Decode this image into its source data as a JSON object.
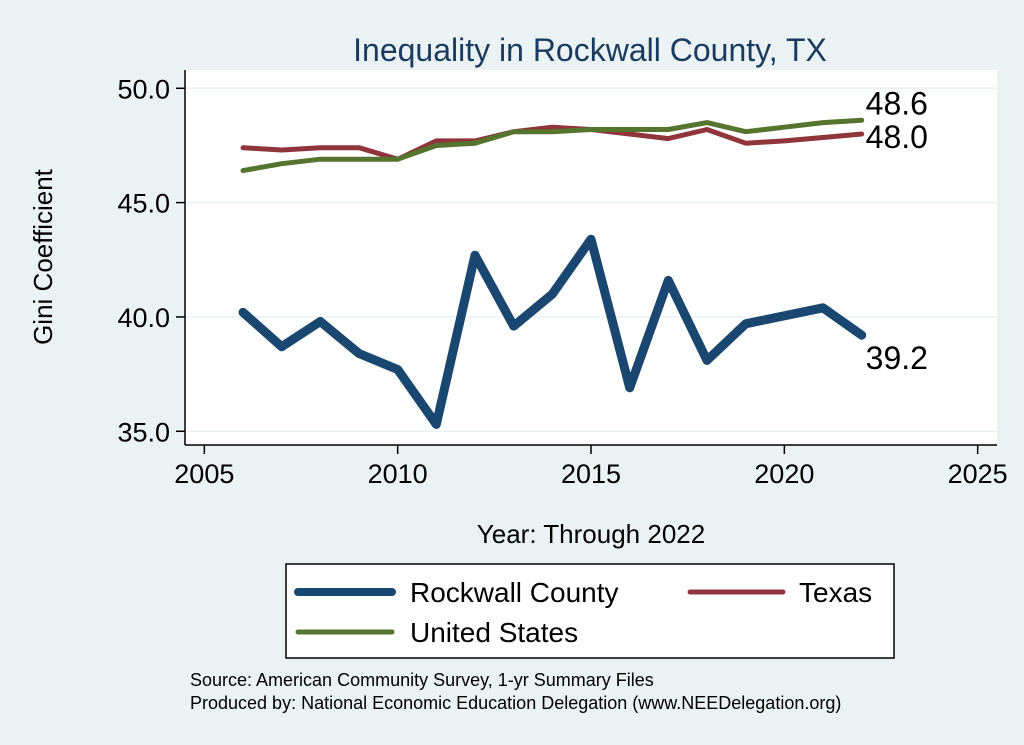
{
  "chart_data": {
    "type": "line",
    "title": "Inequality in Rockwall County, TX",
    "xlabel": "Year: Through 2022",
    "ylabel": "Gini Coefficient",
    "xlim": [
      2004.5,
      2025.5
    ],
    "ylim": [
      34.4,
      50.8
    ],
    "xticks": [
      2005,
      2010,
      2015,
      2020,
      2025
    ],
    "xtick_labels": [
      "2005",
      "2010",
      "2015",
      "2020",
      "2025"
    ],
    "yticks": [
      35,
      40,
      45,
      50
    ],
    "ytick_labels": [
      "35.0",
      "40.0",
      "45.0",
      "50.0"
    ],
    "grid": true,
    "x": [
      2006,
      2007,
      2008,
      2009,
      2010,
      2011,
      2012,
      2013,
      2014,
      2015,
      2016,
      2017,
      2018,
      2019,
      2020,
      2021,
      2022
    ],
    "series": [
      {
        "key": "rockwall",
        "name": "Rockwall County",
        "color": "#1a476f",
        "values": [
          40.2,
          38.7,
          39.8,
          38.4,
          37.7,
          35.3,
          42.7,
          39.6,
          41.0,
          43.4,
          36.9,
          41.6,
          38.1,
          39.7,
          40.05,
          40.4,
          39.2
        ],
        "end_label": "39.2"
      },
      {
        "key": "texas",
        "name": "Texas",
        "color": "#90353b",
        "values": [
          47.4,
          47.3,
          47.4,
          47.4,
          46.9,
          47.7,
          47.7,
          48.1,
          48.3,
          48.2,
          48.0,
          47.8,
          48.2,
          47.6,
          47.7,
          47.85,
          48.0
        ],
        "end_label": "48.0"
      },
      {
        "key": "us",
        "name": "United States",
        "color": "#55752f",
        "values": [
          46.4,
          46.7,
          46.9,
          46.9,
          46.9,
          47.5,
          47.6,
          48.1,
          48.1,
          48.2,
          48.2,
          48.2,
          48.5,
          48.1,
          48.3,
          48.5,
          48.6
        ],
        "end_label": "48.6"
      }
    ],
    "legend": [
      "Rockwall County",
      "Texas",
      "United States"
    ],
    "legend_position": "bottom"
  },
  "source": {
    "line1": "Source: American Community Survey, 1-yr Summary Files",
    "line2": "Produced by: National Economic Education Delegation (www.NEEDelegation.org)"
  },
  "colors": {
    "background": "#eaf2f3",
    "plot_background": "#ffffff",
    "grid": "#eaf2f3",
    "title": "#1a3a5e"
  }
}
